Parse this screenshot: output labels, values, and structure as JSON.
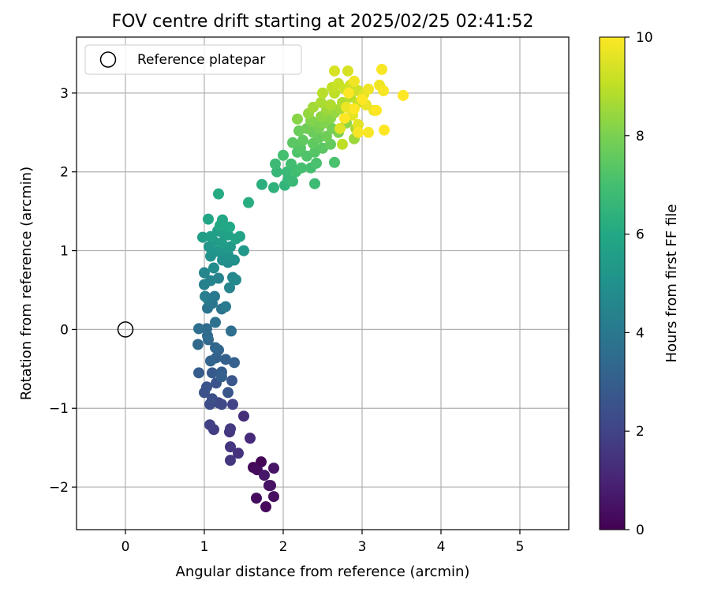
{
  "chart_data": {
    "type": "scatter",
    "title": "FOV centre drift starting at 2025/02/25 02:41:52",
    "xlabel": "Angular distance from reference (arcmin)",
    "ylabel": "Rotation from reference (arcmin)",
    "xlim": [
      -0.62,
      5.62
    ],
    "ylim": [
      -2.54,
      3.71
    ],
    "xticks": [
      0,
      1,
      2,
      3,
      4,
      5
    ],
    "yticks": [
      -2,
      -1,
      0,
      1,
      2,
      3
    ],
    "grid": true,
    "legend": {
      "placement": "upper-left",
      "entries": [
        "Reference platepar"
      ]
    },
    "reference": {
      "x": 0,
      "y": 0,
      "label": "Reference platepar",
      "marker": "hollow-circle"
    },
    "colorbar": {
      "label": "Hours from first FF file",
      "min": 0,
      "max": 10,
      "ticks": [
        0,
        2,
        4,
        6,
        8,
        10
      ],
      "colormap": "viridis",
      "stops": [
        "#440154",
        "#482475",
        "#414487",
        "#355f8d",
        "#2a788e",
        "#21918c",
        "#22a884",
        "#44bf70",
        "#7ad151",
        "#bddf26",
        "#fde725"
      ]
    },
    "points": [
      [
        1.72,
        -1.68,
        0.1
      ],
      [
        1.78,
        -2.25,
        0.2
      ],
      [
        1.62,
        -1.75,
        0.2
      ],
      [
        1.67,
        -1.78,
        0.3
      ],
      [
        1.66,
        -2.14,
        0.3
      ],
      [
        1.82,
        -1.98,
        0.4
      ],
      [
        1.88,
        -2.12,
        0.4
      ],
      [
        1.88,
        -1.76,
        0.5
      ],
      [
        1.84,
        -1.98,
        0.5
      ],
      [
        1.76,
        -1.85,
        0.6
      ],
      [
        1.58,
        -1.38,
        1.2
      ],
      [
        1.5,
        -1.1,
        1.3
      ],
      [
        1.43,
        -1.57,
        1.4
      ],
      [
        1.32,
        -1.3,
        1.5
      ],
      [
        1.33,
        -1.49,
        1.5
      ],
      [
        1.33,
        -1.66,
        1.6
      ],
      [
        1.33,
        -1.26,
        1.7
      ],
      [
        1.12,
        -1.27,
        1.8
      ],
      [
        1.07,
        -1.21,
        1.9
      ],
      [
        1.36,
        -0.95,
        2.0
      ],
      [
        1.18,
        -0.93,
        2.1
      ],
      [
        1.22,
        -0.95,
        2.2
      ],
      [
        1.07,
        -0.95,
        2.3
      ],
      [
        1.1,
        -0.88,
        2.4
      ],
      [
        1.0,
        -0.8,
        2.5
      ],
      [
        1.03,
        -0.73,
        2.5
      ],
      [
        1.15,
        -0.68,
        2.6
      ],
      [
        1.3,
        -0.8,
        2.7
      ],
      [
        1.35,
        -0.65,
        2.7
      ],
      [
        1.1,
        -0.55,
        2.8
      ],
      [
        0.93,
        -0.55,
        2.9
      ],
      [
        1.22,
        -0.54,
        2.9
      ],
      [
        1.22,
        -0.6,
        3.0
      ],
      [
        1.27,
        -0.38,
        3.0
      ],
      [
        1.38,
        -0.42,
        3.1
      ],
      [
        1.15,
        -0.36,
        3.1
      ],
      [
        1.08,
        -0.4,
        3.2
      ],
      [
        1.18,
        -0.26,
        3.2
      ],
      [
        1.14,
        -0.23,
        3.3
      ],
      [
        1.05,
        -0.13,
        3.4
      ],
      [
        0.92,
        -0.19,
        3.4
      ],
      [
        1.04,
        -0.08,
        3.5
      ],
      [
        1.03,
        0.01,
        3.5
      ],
      [
        0.93,
        0.01,
        3.6
      ],
      [
        1.34,
        -0.02,
        3.6
      ],
      [
        1.14,
        0.09,
        3.7
      ],
      [
        1.22,
        0.26,
        3.8
      ],
      [
        1.04,
        0.27,
        3.8
      ],
      [
        1.1,
        0.33,
        3.9
      ],
      [
        1.05,
        0.38,
        4.0
      ],
      [
        1.13,
        0.42,
        4.0
      ],
      [
        1.27,
        0.29,
        4.1
      ],
      [
        1.01,
        0.42,
        4.2
      ],
      [
        1.0,
        0.57,
        4.3
      ],
      [
        1.08,
        0.62,
        4.4
      ],
      [
        1.18,
        0.65,
        4.4
      ],
      [
        1.32,
        0.53,
        4.5
      ],
      [
        1.0,
        0.72,
        4.5
      ],
      [
        1.36,
        0.66,
        4.6
      ],
      [
        1.4,
        0.63,
        4.7
      ],
      [
        1.12,
        0.78,
        4.8
      ],
      [
        1.3,
        0.85,
        4.8
      ],
      [
        1.23,
        0.88,
        4.9
      ],
      [
        1.38,
        0.88,
        5.0
      ],
      [
        1.08,
        0.93,
        5.1
      ],
      [
        1.3,
        0.95,
        5.1
      ],
      [
        1.17,
        0.99,
        5.2
      ],
      [
        1.06,
        1.05,
        5.2
      ],
      [
        1.5,
        1.0,
        5.3
      ],
      [
        1.28,
        1.02,
        5.3
      ],
      [
        1.12,
        1.12,
        5.4
      ],
      [
        1.33,
        1.05,
        5.4
      ],
      [
        1.22,
        1.1,
        5.5
      ],
      [
        0.98,
        1.17,
        5.5
      ],
      [
        1.08,
        1.18,
        5.6
      ],
      [
        1.17,
        1.25,
        5.6
      ],
      [
        1.3,
        1.2,
        5.7
      ],
      [
        1.23,
        1.23,
        5.7
      ],
      [
        1.4,
        1.15,
        5.8
      ],
      [
        1.45,
        1.18,
        5.8
      ],
      [
        1.23,
        1.39,
        5.9
      ],
      [
        1.05,
        1.4,
        5.9
      ],
      [
        1.32,
        1.3,
        6.0
      ],
      [
        1.2,
        1.32,
        6.0
      ],
      [
        1.18,
        1.72,
        6.1
      ],
      [
        1.56,
        1.61,
        6.2
      ],
      [
        1.73,
        1.84,
        6.3
      ],
      [
        1.88,
        1.8,
        6.4
      ],
      [
        2.02,
        1.83,
        6.5
      ],
      [
        1.92,
        2.0,
        6.6
      ],
      [
        2.06,
        1.9,
        6.6
      ],
      [
        2.12,
        1.88,
        6.7
      ],
      [
        2.05,
        2.0,
        6.7
      ],
      [
        2.4,
        1.85,
        6.8
      ],
      [
        1.9,
        2.1,
        6.8
      ],
      [
        2.16,
        2.0,
        6.9
      ],
      [
        2.1,
        2.1,
        6.9
      ],
      [
        2.23,
        2.05,
        7.0
      ],
      [
        2.35,
        2.05,
        7.0
      ],
      [
        2.0,
        2.21,
        7.0
      ],
      [
        2.42,
        2.11,
        7.1
      ],
      [
        2.65,
        2.12,
        7.1
      ],
      [
        2.18,
        2.25,
        7.2
      ],
      [
        2.3,
        2.2,
        7.2
      ],
      [
        2.22,
        2.3,
        7.3
      ],
      [
        2.4,
        2.25,
        7.3
      ],
      [
        2.12,
        2.37,
        7.4
      ],
      [
        2.5,
        2.3,
        7.4
      ],
      [
        2.38,
        2.36,
        7.5
      ],
      [
        2.25,
        2.4,
        7.5
      ],
      [
        2.6,
        2.35,
        7.6
      ],
      [
        2.45,
        2.43,
        7.6
      ],
      [
        2.2,
        2.52,
        7.7
      ],
      [
        2.38,
        2.5,
        7.7
      ],
      [
        2.55,
        2.45,
        7.8
      ],
      [
        2.3,
        2.55,
        7.8
      ],
      [
        2.45,
        2.55,
        7.9
      ],
      [
        2.62,
        2.55,
        7.9
      ],
      [
        2.42,
        2.62,
        8.0
      ],
      [
        2.7,
        2.5,
        8.0
      ],
      [
        2.52,
        2.62,
        8.1
      ],
      [
        2.35,
        2.65,
        8.1
      ],
      [
        2.18,
        2.67,
        8.2
      ],
      [
        2.6,
        2.68,
        8.2
      ],
      [
        2.8,
        2.62,
        8.3
      ],
      [
        2.48,
        2.7,
        8.3
      ],
      [
        2.32,
        2.74,
        8.4
      ],
      [
        2.65,
        2.75,
        8.4
      ],
      [
        2.9,
        2.42,
        8.5
      ],
      [
        2.55,
        2.78,
        8.5
      ],
      [
        2.38,
        2.82,
        8.6
      ],
      [
        2.72,
        2.8,
        8.6
      ],
      [
        2.48,
        2.88,
        8.7
      ],
      [
        2.92,
        2.55,
        8.7
      ],
      [
        2.6,
        2.85,
        8.8
      ],
      [
        2.75,
        2.88,
        8.8
      ],
      [
        2.5,
        3.0,
        8.9
      ],
      [
        2.85,
        2.95,
        8.9
      ],
      [
        2.65,
        3.0,
        9.0
      ],
      [
        2.75,
        2.35,
        9.0
      ],
      [
        2.95,
        2.88,
        9.1
      ],
      [
        2.62,
        3.07,
        9.1
      ],
      [
        2.78,
        3.05,
        9.2
      ],
      [
        2.7,
        3.12,
        9.2
      ],
      [
        2.85,
        3.1,
        9.3
      ],
      [
        2.95,
        3.03,
        9.3
      ],
      [
        2.65,
        3.28,
        9.4
      ],
      [
        2.82,
        3.28,
        9.4
      ],
      [
        3.02,
        2.98,
        9.5
      ],
      [
        2.72,
        2.55,
        9.5
      ],
      [
        2.88,
        2.72,
        9.6
      ],
      [
        2.95,
        2.6,
        9.6
      ],
      [
        3.05,
        2.85,
        9.7
      ],
      [
        2.8,
        2.82,
        9.7
      ],
      [
        3.15,
        2.78,
        9.7
      ],
      [
        2.9,
        3.15,
        9.8
      ],
      [
        3.08,
        3.05,
        9.8
      ],
      [
        3.22,
        3.1,
        9.8
      ],
      [
        2.95,
        2.5,
        9.9
      ],
      [
        3.08,
        2.5,
        9.9
      ],
      [
        3.27,
        3.03,
        9.9
      ],
      [
        3.25,
        3.3,
        9.9
      ],
      [
        3.52,
        2.97,
        10.0
      ],
      [
        3.28,
        2.53,
        10.0
      ],
      [
        2.9,
        2.8,
        10.0
      ],
      [
        2.78,
        2.68,
        10.0
      ],
      [
        3.0,
        2.92,
        10.0
      ],
      [
        3.18,
        2.78,
        10.0
      ],
      [
        2.83,
        3.0,
        10.0
      ]
    ]
  }
}
